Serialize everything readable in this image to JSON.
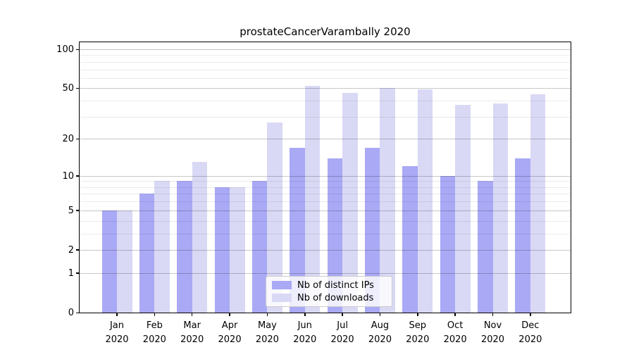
{
  "chart_data": {
    "type": "bar",
    "title": "prostateCancerVarambally 2020",
    "categories": [
      "Jan\n2020",
      "Feb\n2020",
      "Mar\n2020",
      "Apr\n2020",
      "May\n2020",
      "Jun\n2020",
      "Jul\n2020",
      "Aug\n2020",
      "Sep\n2020",
      "Oct\n2020",
      "Nov\n2020",
      "Dec\n2020"
    ],
    "series": [
      {
        "name": "Nb of distinct IPs",
        "color": "#a9a9f5",
        "values": [
          5,
          7,
          9,
          8,
          9,
          17,
          14,
          17,
          12,
          10,
          9,
          14
        ]
      },
      {
        "name": "Nb of downloads",
        "color": "#d9d9f5",
        "values": [
          5,
          9,
          13,
          8,
          27,
          52,
          46,
          50,
          49,
          37,
          38,
          45
        ]
      }
    ],
    "xlabel": "",
    "ylabel": "",
    "y_scale": "log1p",
    "y_ticks": [
      0,
      1,
      2,
      5,
      10,
      20,
      50,
      100
    ],
    "y_minor_ticks": [
      3,
      4,
      6,
      7,
      8,
      9,
      30,
      40,
      60,
      70,
      80,
      90
    ],
    "ylim": [
      0,
      113
    ],
    "grid": "horizontal",
    "legend_position": "lower-center-inside",
    "frame_color": "#000000",
    "background_color": "#ffffff"
  }
}
